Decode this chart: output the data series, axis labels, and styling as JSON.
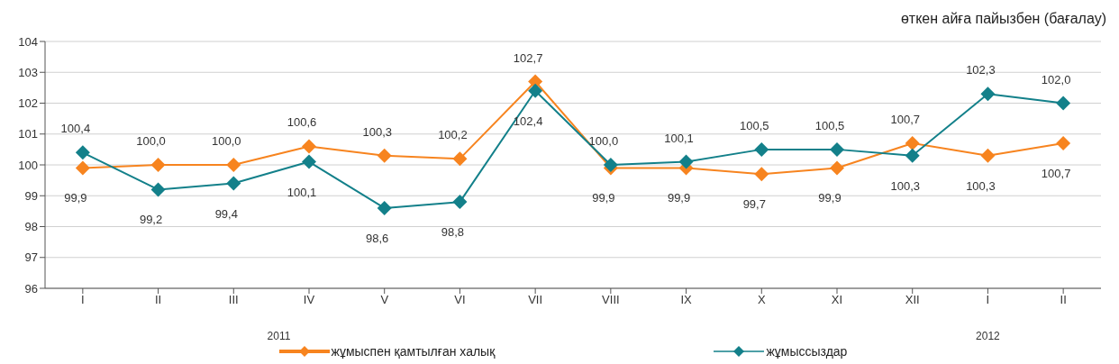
{
  "chart_data": {
    "type": "line",
    "ylabel": "өткен айға пайызбен (бағалау)",
    "categories": [
      "I",
      "II",
      "III",
      "IV",
      "V",
      "VI",
      "VII",
      "VIII",
      "IX",
      "X",
      "XI",
      "XII",
      "I",
      "II"
    ],
    "series": [
      {
        "name": "жұмыспен қамтылған халық",
        "color": "#f7841f",
        "values": [
          99.9,
          100.0,
          100.0,
          100.6,
          100.3,
          100.2,
          102.7,
          99.9,
          99.9,
          99.7,
          99.9,
          100.7,
          100.3,
          100.7
        ],
        "value_labels": [
          "99,9",
          "100,0",
          "100,0",
          "100,6",
          "100,3",
          "100,2",
          "102,7",
          "99,9",
          "99,9",
          "99,7",
          "99,9",
          "100,7",
          "100,3",
          "100,7"
        ]
      },
      {
        "name": "жұмыссыздар",
        "color": "#13808a",
        "values": [
          100.4,
          99.2,
          99.4,
          100.1,
          98.6,
          98.8,
          102.4,
          100.0,
          100.1,
          100.5,
          100.5,
          100.3,
          102.3,
          102.0
        ],
        "value_labels": [
          "100,4",
          "99,2",
          "99,4",
          "100,1",
          "98,6",
          "98,8",
          "102,4",
          "100,0",
          "100,1",
          "100,5",
          "100,5",
          "100,3",
          "102,3",
          "102,0"
        ]
      }
    ],
    "annotations": [
      "2011",
      "2012"
    ],
    "ylim": [
      96,
      104
    ],
    "yticks": [
      96,
      97,
      98,
      99,
      100,
      101,
      102,
      103,
      104
    ],
    "grid": "y",
    "legend": "bottom",
    "marker": "diamond",
    "line_style": "solid"
  }
}
